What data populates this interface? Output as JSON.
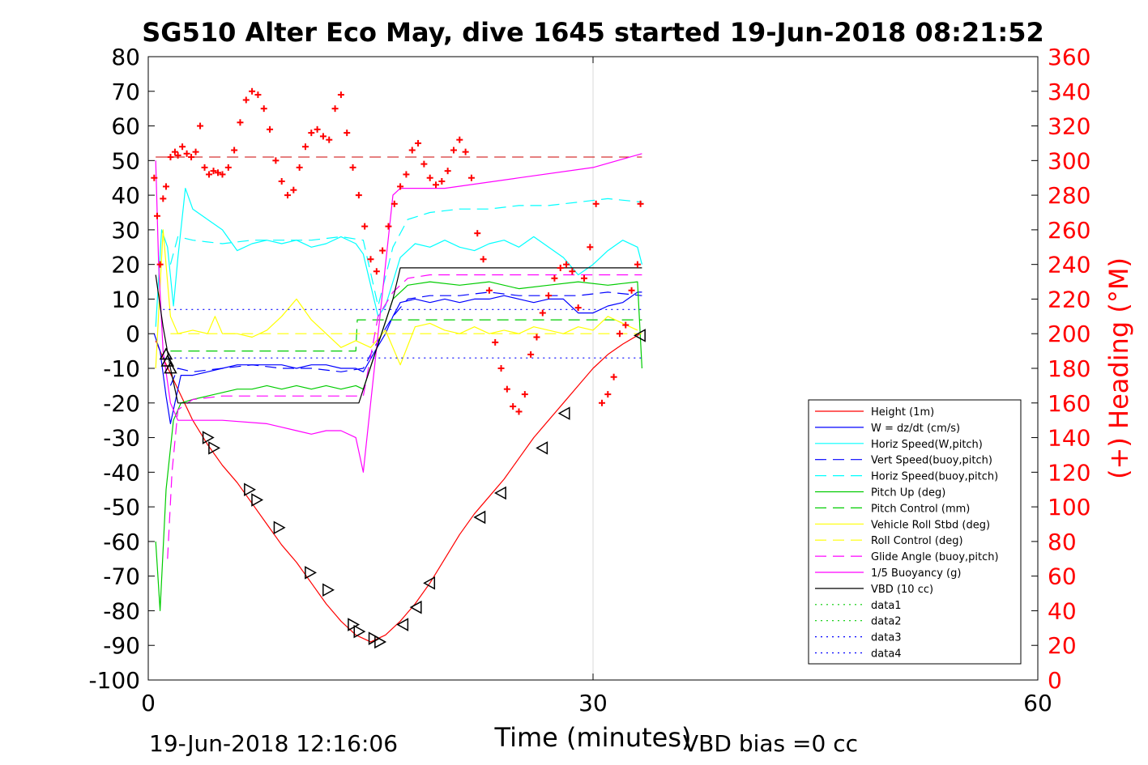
{
  "chart_data": {
    "type": "line",
    "title": "SG510 Alter Eco May, dive 1645 started 19-Jun-2018 08:21:52",
    "xlabel": "Time (minutes)",
    "ylabel": "",
    "y2label": "(+) Heading (°M)",
    "footer_left": "19-Jun-2018 12:16:06",
    "footer_right": "VBD bias =0 cc",
    "xlim": [
      0,
      60
    ],
    "ylim": [
      -100,
      80
    ],
    "y2lim": [
      0,
      360
    ],
    "x_ticks": [
      0,
      30,
      60
    ],
    "y_ticks": [
      -100,
      -90,
      -80,
      -70,
      -60,
      -50,
      -40,
      -30,
      -20,
      -10,
      0,
      10,
      20,
      30,
      40,
      50,
      60,
      70,
      80
    ],
    "y2_ticks": [
      0,
      20,
      40,
      60,
      80,
      100,
      120,
      140,
      160,
      180,
      200,
      220,
      240,
      260,
      280,
      300,
      320,
      340,
      360
    ],
    "grid": "x-only",
    "legend_position": "lower-right",
    "colors": {
      "axis": "#000000",
      "right_axis": "#ff0000",
      "grid": "#d9d9d9"
    },
    "series": [
      {
        "name": "Height (1m)",
        "color": "#ff0000",
        "style": "solid",
        "x": [
          0.5,
          1,
          2,
          3,
          4,
          5,
          6,
          7,
          8,
          9,
          10,
          11,
          12,
          13,
          14,
          14.5,
          15,
          15.5,
          16,
          16.5,
          17,
          18,
          19,
          20,
          21,
          22,
          23,
          24,
          25,
          26,
          27,
          28,
          29,
          30,
          31,
          32,
          33.2
        ],
        "y": [
          -2,
          -7,
          -16,
          -25,
          -32,
          -38,
          -43,
          -49,
          -55,
          -61,
          -66,
          -72,
          -78,
          -83,
          -87,
          -88,
          -89,
          -88,
          -87,
          -85,
          -83,
          -78,
          -72,
          -65,
          -58,
          -52,
          -47,
          -42,
          -36,
          -30,
          -25,
          -20,
          -15,
          -10,
          -6,
          -3,
          0
        ]
      },
      {
        "name": "W = dz/dt (cm/s)",
        "color": "#0000ff",
        "style": "solid",
        "x": [
          0.4,
          0.8,
          1.2,
          1.5,
          1.8,
          2.2,
          3,
          4,
          5,
          6,
          7,
          8,
          9,
          10,
          11,
          12,
          13,
          14,
          14.5,
          15.3,
          16,
          16.5,
          17,
          18,
          19,
          20,
          21,
          22,
          23,
          24,
          25,
          26,
          27,
          28,
          29,
          30,
          31,
          32,
          33,
          33.3
        ],
        "y": [
          0,
          -5,
          -18,
          -26,
          -20,
          -12,
          -12,
          -11,
          -10,
          -9,
          -9,
          -9,
          -9,
          -10,
          -9,
          -9,
          -10,
          -10,
          -11,
          -5,
          0,
          5,
          9,
          10,
          9,
          10,
          9,
          10,
          10,
          11,
          10,
          9,
          10,
          10,
          6,
          6,
          8,
          9,
          12,
          12
        ]
      },
      {
        "name": "Horiz Speed(W,pitch)",
        "color": "#00ffff",
        "style": "solid",
        "x": [
          0.5,
          0.9,
          1.3,
          1.7,
          2,
          2.5,
          3,
          4,
          5,
          6,
          7,
          8,
          9,
          10,
          11,
          12,
          13,
          14,
          14.5,
          15.5,
          16,
          16.5,
          17,
          18,
          19,
          20,
          21,
          22,
          23,
          24,
          25,
          26,
          27,
          28,
          29,
          30,
          31,
          32,
          33,
          33.3
        ],
        "y": [
          2,
          30,
          25,
          8,
          22,
          42,
          36,
          33,
          30,
          24,
          26,
          27,
          26,
          27,
          25,
          26,
          28,
          26,
          23,
          5,
          8,
          15,
          22,
          26,
          25,
          27,
          25,
          24,
          26,
          27,
          25,
          28,
          25,
          22,
          17,
          20,
          24,
          27,
          25,
          20
        ]
      },
      {
        "name": "Vert Speed(buoy,pitch)",
        "color": "#0000ff",
        "style": "dashed",
        "x": [
          1.5,
          2,
          3,
          5,
          7,
          9,
          11,
          13,
          14.5,
          15.5,
          16.5,
          17.5,
          19,
          21,
          23,
          25,
          27,
          29,
          31,
          33.3
        ],
        "y": [
          -15,
          -10,
          -11,
          -10,
          -9,
          -10,
          -10,
          -11,
          -10,
          -2,
          5,
          10,
          11,
          11,
          12,
          11,
          11,
          11,
          12,
          11
        ]
      },
      {
        "name": "Horiz Speed(buoy,pitch)",
        "color": "#00ffff",
        "style": "dashed",
        "x": [
          1.5,
          2,
          3,
          5,
          7,
          9,
          11,
          13,
          14.5,
          15.5,
          16.5,
          17.5,
          19,
          21,
          23,
          25,
          27,
          29,
          31,
          33.3
        ],
        "y": [
          20,
          28,
          27,
          26,
          27,
          27,
          27,
          28,
          27,
          8,
          25,
          33,
          35,
          36,
          36,
          37,
          37,
          38,
          39,
          38
        ]
      },
      {
        "name": "Pitch Up (deg)",
        "color": "#00cc00",
        "style": "solid",
        "x": [
          0.5,
          0.8,
          1.2,
          1.7,
          2.2,
          3,
          4,
          5,
          6,
          7,
          8,
          9,
          10,
          11,
          12,
          13,
          14,
          14.5,
          15.5,
          16.5,
          17.5,
          19,
          21,
          23,
          25,
          27,
          29,
          31,
          33,
          33.3
        ],
        "y": [
          -60,
          -80,
          -45,
          -25,
          -20,
          -19,
          -18,
          -17,
          -16,
          -16,
          -15,
          -16,
          -15,
          -16,
          -15,
          -16,
          -15,
          -16,
          -3,
          10,
          14,
          15,
          14,
          15,
          13,
          14,
          15,
          14,
          15,
          -10
        ]
      },
      {
        "name": "Pitch Control (mm)",
        "color": "#00cc00",
        "style": "dashed",
        "x": [
          1.5,
          14,
          14.1,
          33.3
        ],
        "y": [
          -5,
          -5,
          4,
          4
        ]
      },
      {
        "name": "Vehicle Roll Stbd (deg)",
        "color": "#ffff00",
        "style": "solid",
        "x": [
          0.5,
          1,
          1.5,
          2,
          3,
          4,
          4.5,
          5,
          6,
          7,
          8,
          9,
          10,
          11,
          12,
          13,
          14,
          15,
          16,
          17,
          18,
          19,
          20,
          21,
          22,
          23,
          24,
          25,
          26,
          27,
          28,
          29,
          30,
          31,
          32,
          33
        ],
        "y": [
          -10,
          30,
          5,
          0,
          1,
          0,
          5,
          0,
          0,
          -1,
          1,
          5,
          10,
          4,
          0,
          -4,
          -2,
          -4,
          1,
          -9,
          2,
          3,
          1,
          0,
          2,
          0,
          1,
          0,
          2,
          1,
          0,
          2,
          1,
          5,
          3,
          1
        ]
      },
      {
        "name": "Roll Control (deg)",
        "color": "#ffff00",
        "style": "dashed",
        "x": [
          1.5,
          33.3
        ],
        "y": [
          0,
          0
        ]
      },
      {
        "name": "Glide Angle (buoy,pitch)",
        "color": "#ff00ff",
        "style": "dashed",
        "x": [
          1.3,
          1.6,
          2,
          3,
          5,
          7,
          9,
          11,
          13,
          14.5,
          15.5,
          16.5,
          17.5,
          19,
          21,
          23,
          25,
          27,
          29,
          31,
          33.3
        ],
        "y": [
          -65,
          -40,
          -22,
          -19,
          -18,
          -18,
          -18,
          -18,
          -18,
          -18,
          5,
          12,
          16,
          17,
          17,
          17,
          17,
          17,
          17,
          17,
          17
        ]
      },
      {
        "name": "1/5 Buoyancy (g)",
        "color": "#ff00ff",
        "style": "solid",
        "x": [
          0.5,
          0.7,
          1,
          1.5,
          2,
          5,
          8,
          9,
          10,
          11,
          12,
          13,
          14,
          14.5,
          15,
          15.5,
          16.5,
          17,
          20,
          25,
          30,
          33.3
        ],
        "y": [
          50,
          20,
          -5,
          -20,
          -25,
          -25,
          -26,
          -27,
          -28,
          -29,
          -28,
          -28,
          -30,
          -40,
          -20,
          0,
          40,
          42,
          42,
          45,
          48,
          52
        ]
      },
      {
        "name": "VBD (10 cc)",
        "color": "#000000",
        "style": "solid",
        "x": [
          0.5,
          1,
          1.5,
          2,
          14,
          14.2,
          15.5,
          16.5,
          17,
          33.3
        ],
        "y": [
          17,
          2,
          -10,
          -20,
          -20,
          -20,
          -3,
          10,
          19,
          19
        ]
      },
      {
        "name": "data1",
        "color": "#00cc00",
        "style": "dotted",
        "x": [],
        "y": []
      },
      {
        "name": "data2",
        "color": "#00cc00",
        "style": "dotted",
        "x": [],
        "y": []
      },
      {
        "name": "data3",
        "color": "#0000ff",
        "style": "dotted",
        "x": [
          1,
          33.3
        ],
        "y": [
          -7,
          -7
        ]
      },
      {
        "name": "data4",
        "color": "#0000ff",
        "style": "dotted",
        "x": [
          1,
          33.3
        ],
        "y": [
          7,
          7
        ]
      }
    ],
    "reference_lines": [
      {
        "axis": "right",
        "value": 302,
        "color": "#cc0000",
        "style": "dashed",
        "x": [
          0.5,
          33.3
        ]
      }
    ],
    "heading_points": {
      "axis": "right",
      "marker": "+",
      "color": "#ff0000",
      "x": [
        0.4,
        0.6,
        0.8,
        1,
        1.2,
        1.5,
        1.8,
        2,
        2.3,
        2.6,
        2.9,
        3.2,
        3.5,
        3.8,
        4.1,
        4.4,
        4.7,
        5,
        5.4,
        5.8,
        6.2,
        6.6,
        7,
        7.4,
        7.8,
        8.2,
        8.6,
        9,
        9.4,
        9.8,
        10.2,
        10.6,
        11,
        11.4,
        11.8,
        12.2,
        12.6,
        13,
        13.4,
        13.8,
        14.2,
        14.6,
        15,
        15.4,
        15.8,
        16.2,
        16.6,
        17,
        17.4,
        17.8,
        18.2,
        18.6,
        19,
        19.4,
        19.8,
        20.2,
        20.6,
        21,
        21.4,
        21.8,
        22.2,
        22.6,
        23,
        23.4,
        23.8,
        24.2,
        24.6,
        25,
        25.4,
        25.8,
        26.2,
        26.6,
        27,
        27.4,
        27.8,
        28.2,
        28.6,
        29,
        29.4,
        29.8,
        30.2,
        30.6,
        31,
        31.4,
        31.8,
        32.2,
        32.6,
        33,
        33.2
      ],
      "y": [
        290,
        268,
        240,
        278,
        285,
        302,
        305,
        303,
        308,
        304,
        302,
        305,
        320,
        296,
        292,
        294,
        293,
        292,
        296,
        306,
        322,
        335,
        340,
        338,
        330,
        318,
        300,
        288,
        280,
        283,
        296,
        308,
        316,
        318,
        314,
        312,
        330,
        338,
        316,
        296,
        280,
        262,
        243,
        236,
        248,
        262,
        275,
        285,
        292,
        306,
        310,
        298,
        290,
        286,
        288,
        294,
        306,
        312,
        305,
        290,
        258,
        243,
        225,
        195,
        180,
        168,
        158,
        155,
        165,
        188,
        198,
        212,
        222,
        232,
        238,
        240,
        236,
        215,
        232,
        250,
        275,
        160,
        165,
        175,
        200,
        205,
        225,
        240,
        275
      ]
    },
    "dive_markers": {
      "marker": "triangle",
      "color": "#000000",
      "x": [
        1.2,
        1.3,
        1.5,
        4,
        4.4,
        6.8,
        7.3,
        8.8,
        10.9,
        12.1,
        13.8,
        14.2,
        15.2,
        15.6,
        17.2,
        18.1,
        19,
        22.4,
        23.8,
        26.6,
        28.1,
        33.2
      ],
      "y": [
        -6,
        -8,
        -10,
        -30,
        -33,
        -45,
        -48,
        -56,
        -69,
        -74,
        -84,
        -86,
        -88,
        -89,
        -84,
        -79,
        -72,
        -53,
        -46,
        -33,
        -23,
        -0.5
      ]
    },
    "legend": [
      "Height (1m)",
      "W = dz/dt (cm/s)",
      "Horiz Speed(W,pitch)",
      "Vert Speed(buoy,pitch)",
      "Horiz Speed(buoy,pitch)",
      "Pitch Up (deg)",
      "Pitch Control (mm)",
      "Vehicle Roll Stbd (deg)",
      "Roll Control (deg)",
      "Glide Angle (buoy,pitch)",
      "1/5 Buoyancy (g)",
      "VBD (10 cc)",
      "data1",
      "data2",
      "data3",
      "data4"
    ]
  }
}
